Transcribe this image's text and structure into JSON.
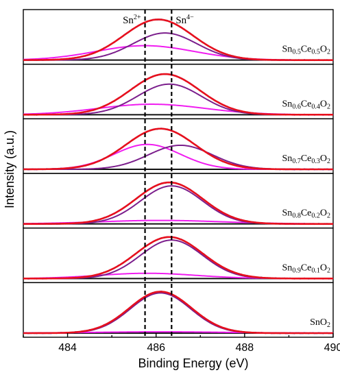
{
  "chart_data": {
    "type": "line",
    "xlabel": "Binding Energy (eV)",
    "ylabel": "Intensity (a.u.)",
    "xlim": [
      483,
      490
    ],
    "xticks": [
      "484",
      "486",
      "488",
      "490"
    ],
    "grid": false,
    "reference_lines": [
      {
        "label_base": "Sn",
        "label_sup": "2+",
        "x": 485.75
      },
      {
        "label_base": "Sn",
        "label_sup": "4−",
        "x": 486.35
      }
    ],
    "colors": {
      "raw": "#1f2fd8",
      "fit": "#e8101c",
      "sn4": "#7b1e8c",
      "sn2": "#f01cf0",
      "baseline": "#111111"
    },
    "panels": [
      {
        "label": [
          [
            "Sn",
            false
          ],
          [
            "0.5",
            true
          ],
          [
            "Ce",
            false
          ],
          [
            "0.5",
            true
          ],
          [
            "O",
            false
          ],
          [
            "2",
            true
          ]
        ],
        "fit": {
          "center": 486.05,
          "height": 0.93,
          "sigma": 0.78
        },
        "sn4": {
          "center": 486.2,
          "height": 0.62,
          "sigma": 0.72
        },
        "sn2": {
          "center": 485.75,
          "height": 0.33,
          "sigma": 1.1
        }
      },
      {
        "label": [
          [
            "Sn",
            false
          ],
          [
            "0.6",
            true
          ],
          [
            "Ce",
            false
          ],
          [
            "0.4",
            true
          ],
          [
            "O",
            false
          ],
          [
            "2",
            true
          ]
        ],
        "fit": {
          "center": 486.2,
          "height": 0.93,
          "sigma": 0.78
        },
        "sn4": {
          "center": 486.3,
          "height": 0.7,
          "sigma": 0.72
        },
        "sn2": {
          "center": 485.9,
          "height": 0.24,
          "sigma": 1.2
        }
      },
      {
        "label": [
          [
            "Sn",
            false
          ],
          [
            "0.7",
            true
          ],
          [
            "Ce",
            false
          ],
          [
            "0.3",
            true
          ],
          [
            "O",
            false
          ],
          [
            "2",
            true
          ]
        ],
        "fit": {
          "center": 486.1,
          "height": 0.93,
          "sigma": 0.78
        },
        "sn4": {
          "center": 486.55,
          "height": 0.55,
          "sigma": 0.72
        },
        "sn2": {
          "center": 485.8,
          "height": 0.57,
          "sigma": 0.75
        }
      },
      {
        "label": [
          [
            "Sn",
            false
          ],
          [
            "0.8",
            true
          ],
          [
            "Ce",
            false
          ],
          [
            "0.2",
            true
          ],
          [
            "O",
            false
          ],
          [
            "2",
            true
          ]
        ],
        "fit": {
          "center": 486.3,
          "height": 0.95,
          "sigma": 0.75
        },
        "sn4": {
          "center": 486.35,
          "height": 0.87,
          "sigma": 0.7
        },
        "sn2": {
          "center": 486.1,
          "height": 0.08,
          "sigma": 1.4
        }
      },
      {
        "label": [
          [
            "Sn",
            false
          ],
          [
            "0.9",
            true
          ],
          [
            "Ce",
            false
          ],
          [
            "0.1",
            true
          ],
          [
            "O",
            false
          ],
          [
            "2",
            true
          ]
        ],
        "fit": {
          "center": 486.3,
          "height": 0.95,
          "sigma": 0.75
        },
        "sn4": {
          "center": 486.35,
          "height": 0.88,
          "sigma": 0.7
        },
        "sn2": {
          "center": 485.8,
          "height": 0.12,
          "sigma": 1.1
        }
      },
      {
        "label": [
          [
            "SnO",
            false
          ],
          [
            "2",
            true
          ]
        ],
        "fit": {
          "center": 486.1,
          "height": 0.95,
          "sigma": 0.7
        },
        "sn4": {
          "center": 486.1,
          "height": 0.92,
          "sigma": 0.68
        },
        "sn2": {
          "center": 486.1,
          "height": 0.03,
          "sigma": 1.5
        }
      }
    ]
  }
}
